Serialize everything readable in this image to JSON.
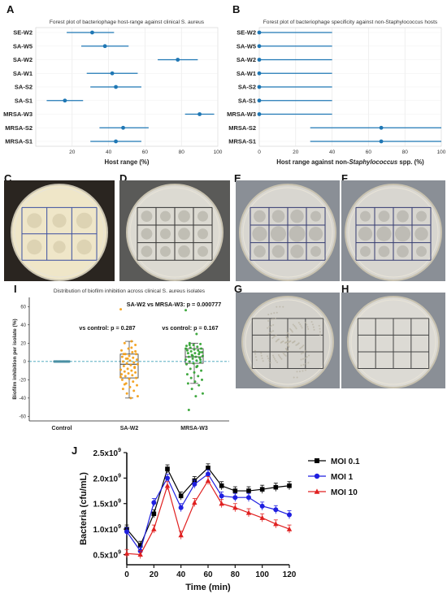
{
  "figure": {
    "panel_labels": [
      "A",
      "B",
      "C",
      "D",
      "E",
      "F",
      "G",
      "H",
      "I",
      "J"
    ]
  },
  "chart_data": [
    {
      "id": "A",
      "type": "scatter",
      "title": "Forest plot of bacteriophage host-range against clinical S. aureus",
      "xlabel": "Host range (%)",
      "ylabel": "",
      "xlim": [
        0,
        100
      ],
      "xticks": [
        "20",
        "40",
        "60",
        "80",
        "100"
      ],
      "categories": [
        "SE-W2",
        "SA-W5",
        "SA-W2",
        "SA-W1",
        "SA-S2",
        "SA-S1",
        "MRSA-W3",
        "MRSA-S2",
        "MRSA-S1"
      ],
      "values": [
        31,
        38,
        78,
        42,
        44,
        16,
        90,
        48,
        44
      ],
      "ci_low": [
        17,
        25,
        67,
        28,
        30,
        6,
        82,
        35,
        30
      ],
      "ci_high": [
        43,
        51,
        89,
        56,
        58,
        26,
        98,
        62,
        58
      ],
      "color": "#1f77b4"
    },
    {
      "id": "B",
      "type": "scatter",
      "title": "Forest plot of bacteriophage specificity against non-Staphylococcus hosts",
      "xlabel_prefix": "Host range against non-",
      "xlabel_italic": "Staphylococcus",
      "xlabel_suffix": " spp. (%)",
      "xlim": [
        0,
        100
      ],
      "xticks": [
        "0",
        "20",
        "40",
        "60",
        "80",
        "100"
      ],
      "categories": [
        "SE-W2",
        "SA-W5",
        "SA-W2",
        "SA-W1",
        "SA-S2",
        "SA-S1",
        "MRSA-W3",
        "MRSA-S2",
        "MRSA-S1"
      ],
      "values": [
        0,
        0,
        0,
        0,
        0,
        0,
        0,
        67,
        67
      ],
      "ci_low": [
        0,
        0,
        0,
        0,
        0,
        0,
        0,
        28,
        28
      ],
      "ci_high": [
        40,
        40,
        40,
        40,
        40,
        40,
        40,
        100,
        100
      ],
      "color": "#1f77b4"
    },
    {
      "id": "I",
      "type": "scatter",
      "title": "Distribution of biofilm inhibition across clinical S. aureus isolates",
      "ylabel": "Biofilm inhibition per isolate (%)",
      "ylim": [
        -65,
        70
      ],
      "yticks": [
        "60",
        "40",
        "20",
        "0",
        "-20",
        "-40",
        "-60"
      ],
      "categories": [
        "Control",
        "SA-W2",
        "MRSA-W3"
      ],
      "annotations": {
        "top": "SA-W2 vs MRSA-W3: p = 0.000777",
        "left": "vs control: p = 0.287",
        "right": "vs control: p = 0.167"
      },
      "box": [
        {
          "group": "SA-W2",
          "q1": -18,
          "median": -3,
          "q3": 8,
          "whisker_low": -40,
          "whisker_high": 22
        },
        {
          "group": "MRSA-W3",
          "q1": -2,
          "median": 5,
          "q3": 14,
          "whisker_low": -24,
          "whisker_high": 20
        }
      ],
      "points": {
        "Control": [
          0,
          0,
          0,
          0,
          0,
          0,
          0,
          0,
          0,
          0,
          0,
          0,
          0,
          0,
          0,
          0,
          0,
          0,
          0,
          0,
          0,
          0,
          0,
          0,
          0,
          0,
          0,
          0,
          0,
          0
        ],
        "SA-W2": [
          57,
          22,
          20,
          18,
          14,
          12,
          10,
          8,
          8,
          6,
          5,
          4,
          3,
          2,
          1,
          0,
          -1,
          -2,
          -3,
          -4,
          -5,
          -6,
          -8,
          -9,
          -10,
          -11,
          -12,
          -13,
          -14,
          -15,
          -16,
          -18,
          -19,
          -20,
          -22,
          -24,
          -26,
          -28,
          -30,
          -32,
          -35,
          -38,
          -40,
          8,
          -7,
          3,
          -17,
          15,
          -25,
          11
        ],
        "MRSA-W3": [
          56,
          30,
          20,
          19,
          18,
          17,
          16,
          15,
          14,
          13,
          12,
          12,
          11,
          10,
          9,
          9,
          8,
          7,
          6,
          5,
          5,
          4,
          3,
          2,
          1,
          0,
          -1,
          -2,
          -3,
          -5,
          -8,
          -10,
          -12,
          -14,
          -16,
          -18,
          -20,
          -22,
          -24,
          -26,
          -30,
          -35,
          -38,
          -53,
          10,
          6,
          14,
          -6,
          18,
          2
        ]
      },
      "point_colors": {
        "Control": "#4a90a4",
        "SA-W2": "#f39c12",
        "MRSA-W3": "#2ca02c"
      }
    },
    {
      "id": "J",
      "type": "line",
      "xlabel": "Time (min)",
      "ylabel": "Bacteria (cfu/mL)",
      "xlim": [
        0,
        120
      ],
      "ylim": [
        0.3,
        2.5
      ],
      "xticks": [
        "0",
        "20",
        "40",
        "60",
        "80",
        "100",
        "120"
      ],
      "yticks": [
        "0.5x10",
        "1.0x10",
        "1.5x10",
        "2.0x10",
        "2.5x10"
      ],
      "ytick_exp": "9",
      "x": [
        0,
        10,
        20,
        30,
        40,
        50,
        60,
        70,
        80,
        90,
        100,
        110,
        120
      ],
      "series": [
        {
          "name": "MOI 0.1",
          "color": "#000000",
          "marker": "square",
          "values": [
            1.0,
            0.68,
            1.3,
            2.18,
            1.65,
            1.95,
            2.2,
            1.85,
            1.75,
            1.75,
            1.78,
            1.82,
            1.85
          ]
        },
        {
          "name": "MOI 1",
          "color": "#1f1fe0",
          "marker": "circle",
          "values": [
            0.95,
            0.57,
            1.52,
            2.0,
            1.42,
            1.88,
            2.08,
            1.65,
            1.62,
            1.62,
            1.45,
            1.38,
            1.28
          ]
        },
        {
          "name": "MOI 10",
          "color": "#e02020",
          "marker": "triangle",
          "values": [
            0.52,
            0.5,
            1.0,
            1.85,
            0.88,
            1.52,
            1.95,
            1.5,
            1.42,
            1.32,
            1.22,
            1.1,
            1.0
          ]
        }
      ]
    }
  ]
}
